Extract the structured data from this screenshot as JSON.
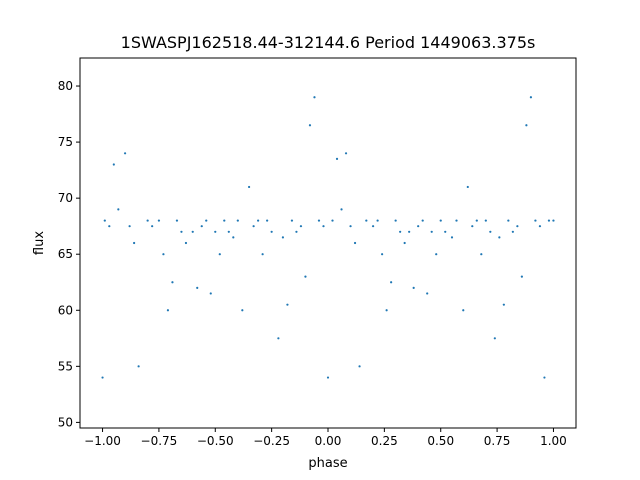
{
  "chart_data": {
    "type": "scatter",
    "title": "1SWASPJ162518.44-312144.6 Period 1449063.375s",
    "xlabel": "phase",
    "ylabel": "flux",
    "xlim": [
      -1.1,
      1.1
    ],
    "ylim": [
      49.5,
      82.5
    ],
    "x_ticks": [
      -1.0,
      -0.75,
      -0.5,
      -0.25,
      0.0,
      0.25,
      0.5,
      0.75,
      1.0
    ],
    "x_tick_labels": [
      "−1.00",
      "−0.75",
      "−0.50",
      "−0.25",
      "0.00",
      "0.25",
      "0.50",
      "0.75",
      "1.00"
    ],
    "y_ticks": [
      50,
      55,
      60,
      65,
      70,
      75,
      80
    ],
    "y_tick_labels": [
      "50",
      "55",
      "60",
      "65",
      "70",
      "75",
      "80"
    ],
    "grid": false,
    "legend": "none",
    "marker_color": "#1f77b4",
    "series": [
      {
        "x": [
          -1.0,
          -0.99,
          -0.97,
          -0.95,
          -0.93,
          -0.9,
          -0.88,
          -0.86,
          -0.84,
          -0.8,
          -0.78,
          -0.75,
          -0.73,
          -0.71,
          -0.69,
          -0.67,
          -0.65,
          -0.63,
          -0.6,
          -0.58,
          -0.56,
          -0.54,
          -0.52,
          -0.5,
          -0.48,
          -0.46,
          -0.44,
          -0.42,
          -0.4,
          -0.38,
          -0.35,
          -0.33,
          -0.31,
          -0.29,
          -0.27,
          -0.25,
          -0.22,
          -0.2,
          -0.18,
          -0.16,
          -0.14,
          -0.12,
          -0.1,
          -0.08,
          -0.06,
          -0.04,
          -0.02,
          0.0,
          0.02,
          0.04,
          0.06,
          0.08,
          0.1,
          0.12,
          0.14,
          0.17,
          0.2,
          0.22,
          0.24,
          0.26,
          0.28,
          0.3,
          0.32,
          0.34,
          0.36,
          0.38,
          0.4,
          0.42,
          0.44,
          0.46,
          0.48,
          0.5,
          0.52,
          0.55,
          0.57,
          0.6,
          0.62,
          0.64,
          0.66,
          0.68,
          0.7,
          0.72,
          0.74,
          0.76,
          0.78,
          0.8,
          0.82,
          0.84,
          0.86,
          0.88,
          0.9,
          0.92,
          0.94,
          0.96,
          0.98,
          1.0
        ],
        "y": [
          54.0,
          68.0,
          67.5,
          73.0,
          69.0,
          74.0,
          67.5,
          66.0,
          55.0,
          68.0,
          67.5,
          68.0,
          65.0,
          60.0,
          62.5,
          68.0,
          67.0,
          66.0,
          67.0,
          62.0,
          67.5,
          68.0,
          61.5,
          67.0,
          65.0,
          68.0,
          67.0,
          66.5,
          68.0,
          60.0,
          71.0,
          67.5,
          68.0,
          65.0,
          68.0,
          67.0,
          57.5,
          66.5,
          60.5,
          68.0,
          67.0,
          67.5,
          63.0,
          76.5,
          79.0,
          68.0,
          67.5,
          54.0,
          68.0,
          73.5,
          69.0,
          74.0,
          67.5,
          66.0,
          55.0,
          68.0,
          67.5,
          68.0,
          65.0,
          60.0,
          62.5,
          68.0,
          67.0,
          66.0,
          67.0,
          62.0,
          67.5,
          68.0,
          61.5,
          67.0,
          65.0,
          68.0,
          67.0,
          66.5,
          68.0,
          60.0,
          71.0,
          67.5,
          68.0,
          65.0,
          68.0,
          67.0,
          57.5,
          66.5,
          60.5,
          68.0,
          67.0,
          67.5,
          63.0,
          76.5,
          79.0,
          68.0,
          67.5,
          54.0,
          68.0,
          68.0
        ]
      }
    ]
  }
}
